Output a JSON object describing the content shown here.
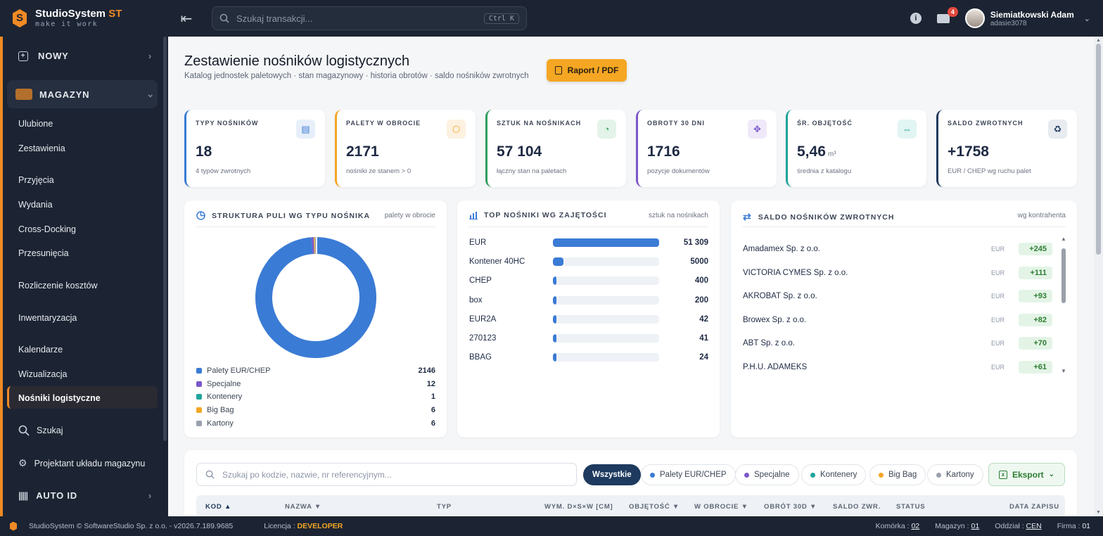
{
  "app": {
    "brand": "StudioSystem",
    "brand_suffix": "ST",
    "tagline": "make it work"
  },
  "search": {
    "placeholder": "Szukaj transakcji...",
    "shortcut": "Ctrl K"
  },
  "header": {
    "mail_count": "4",
    "user_name": "Siemiatkowski Adam",
    "user_login": "adasie3078"
  },
  "sidebar": {
    "nowy": "NOWY",
    "magazyn": "MAGAZYN",
    "items": [
      "Ulubione",
      "Zestawienia",
      "Przyjęcia",
      "Wydania",
      "Cross-Docking",
      "Przesunięcia",
      "Rozliczenie kosztów",
      "Inwentaryzacja",
      "Kalendarze",
      "Wizualizacja",
      "Nośniki logistyczne"
    ],
    "szukaj": "Szukaj",
    "projektant": "Projektant układu magazynu",
    "autoid": "AUTO ID"
  },
  "page": {
    "title": "Zestawienie nośników logistycznych",
    "subtitle": "Katalog jednostek paletowych · stan magazynowy · historia obrotów · saldo nośników zwrotnych",
    "report_button": "Raport / PDF"
  },
  "kpis": [
    {
      "label": "TYPY NOŚNIKÓW",
      "value": "18",
      "unit": "",
      "sub": "4 typów zwrotnych",
      "color": "#3a7bd5"
    },
    {
      "label": "PALETY W OBROCIE",
      "value": "2171",
      "unit": "",
      "sub": "nośniki ze stanem > 0",
      "color": "#f5a623"
    },
    {
      "label": "SZTUK NA NOŚNIKACH",
      "value": "57 104",
      "unit": "",
      "sub": "łączny stan na paletach",
      "color": "#2e9e5b"
    },
    {
      "label": "OBROTY 30 DNI",
      "value": "1716",
      "unit": "",
      "sub": "pozycje dokumentów",
      "color": "#7b57c9"
    },
    {
      "label": "ŚR. OBJĘTOŚĆ",
      "value": "5,46",
      "unit": "m³",
      "sub": "średnia z katalogu",
      "color": "#1fa59a"
    },
    {
      "label": "SALDO ZWROTNYCH",
      "value": "+1758",
      "unit": "",
      "sub": "EUR / CHEP wg ruchu palet",
      "color": "#1e3a5f"
    }
  ],
  "structure": {
    "title": "STRUKTURA PULI WG TYPU NOŚNIKA",
    "note": "palety w obrocie",
    "items": [
      {
        "label": "Palety EUR/CHEP",
        "value": 2146,
        "color": "#3a7bd5"
      },
      {
        "label": "Specjalne",
        "value": 12,
        "color": "#7b57c9"
      },
      {
        "label": "Kontenery",
        "value": 1,
        "color": "#1fa59a"
      },
      {
        "label": "Big Bag",
        "value": 6,
        "color": "#f5a623"
      },
      {
        "label": "Kartony",
        "value": 6,
        "color": "#9aa0ae"
      }
    ]
  },
  "top": {
    "title": "TOP NOŚNIKI WG ZAJĘTOŚCI",
    "note": "sztuk na nośnikach",
    "items": [
      {
        "label": "EUR",
        "value": 51309,
        "display": "51 309"
      },
      {
        "label": "Kontener 40HC",
        "value": 5000,
        "display": "5000"
      },
      {
        "label": "CHEP",
        "value": 400,
        "display": "400"
      },
      {
        "label": "box",
        "value": 200,
        "display": "200"
      },
      {
        "label": "EUR2A",
        "value": 42,
        "display": "42"
      },
      {
        "label": "270123",
        "value": 41,
        "display": "41"
      },
      {
        "label": "BBAG",
        "value": 24,
        "display": "24"
      }
    ]
  },
  "saldo": {
    "title": "SALDO NOŚNIKÓW ZWROTNYCH",
    "note": "wg kontrahenta",
    "items": [
      {
        "name": "Amadamex Sp. z o.o.",
        "cur": "EUR",
        "val": "+245"
      },
      {
        "name": "VICTORIA CYMES Sp. z o.o.",
        "cur": "EUR",
        "val": "+111"
      },
      {
        "name": "AKROBAT Sp. z o.o.",
        "cur": "EUR",
        "val": "+93"
      },
      {
        "name": "Browex Sp. z o.o.",
        "cur": "EUR",
        "val": "+82"
      },
      {
        "name": "ABT Sp. z o.o.",
        "cur": "EUR",
        "val": "+70"
      },
      {
        "name": "P.H.U. ADAMEKS",
        "cur": "EUR",
        "val": "+61"
      }
    ]
  },
  "filters": {
    "placeholder": "Szukaj po kodzie, nazwie, nr referencyjnym...",
    "all": "Wszystkie",
    "chips": [
      {
        "label": "Palety EUR/CHEP",
        "color": "#3a7bd5"
      },
      {
        "label": "Specjalne",
        "color": "#7b57c9"
      },
      {
        "label": "Kontenery",
        "color": "#1fa59a"
      },
      {
        "label": "Big Bag",
        "color": "#f5a623"
      },
      {
        "label": "Kartony",
        "color": "#9aa0ae"
      }
    ],
    "export": "Eksport"
  },
  "table": {
    "columns": [
      "KOD ▲",
      "NAZWA ▼",
      "TYP",
      "WYM. D×S×W [CM]",
      "OBJĘTOŚĆ ▼",
      "W OBROCIE ▼",
      "OBRÓT 30D ▼",
      "SALDO ZWR.",
      "STATUS",
      "DATA ZAPISU"
    ]
  },
  "footer": {
    "copy": "StudioSystem © SoftwareStudio Sp. z o.o. - v2026.7.189.9685",
    "lic_label": "Licencja :",
    "lic_value": "DEVELOPER",
    "komorka_label": "Komórka :",
    "komorka": "02",
    "magazyn_label": "Magazyn :",
    "magazyn": "01",
    "oddzial_label": "Oddział :",
    "oddzial": "CEN",
    "firma_label": "Firma :",
    "firma": "01"
  }
}
